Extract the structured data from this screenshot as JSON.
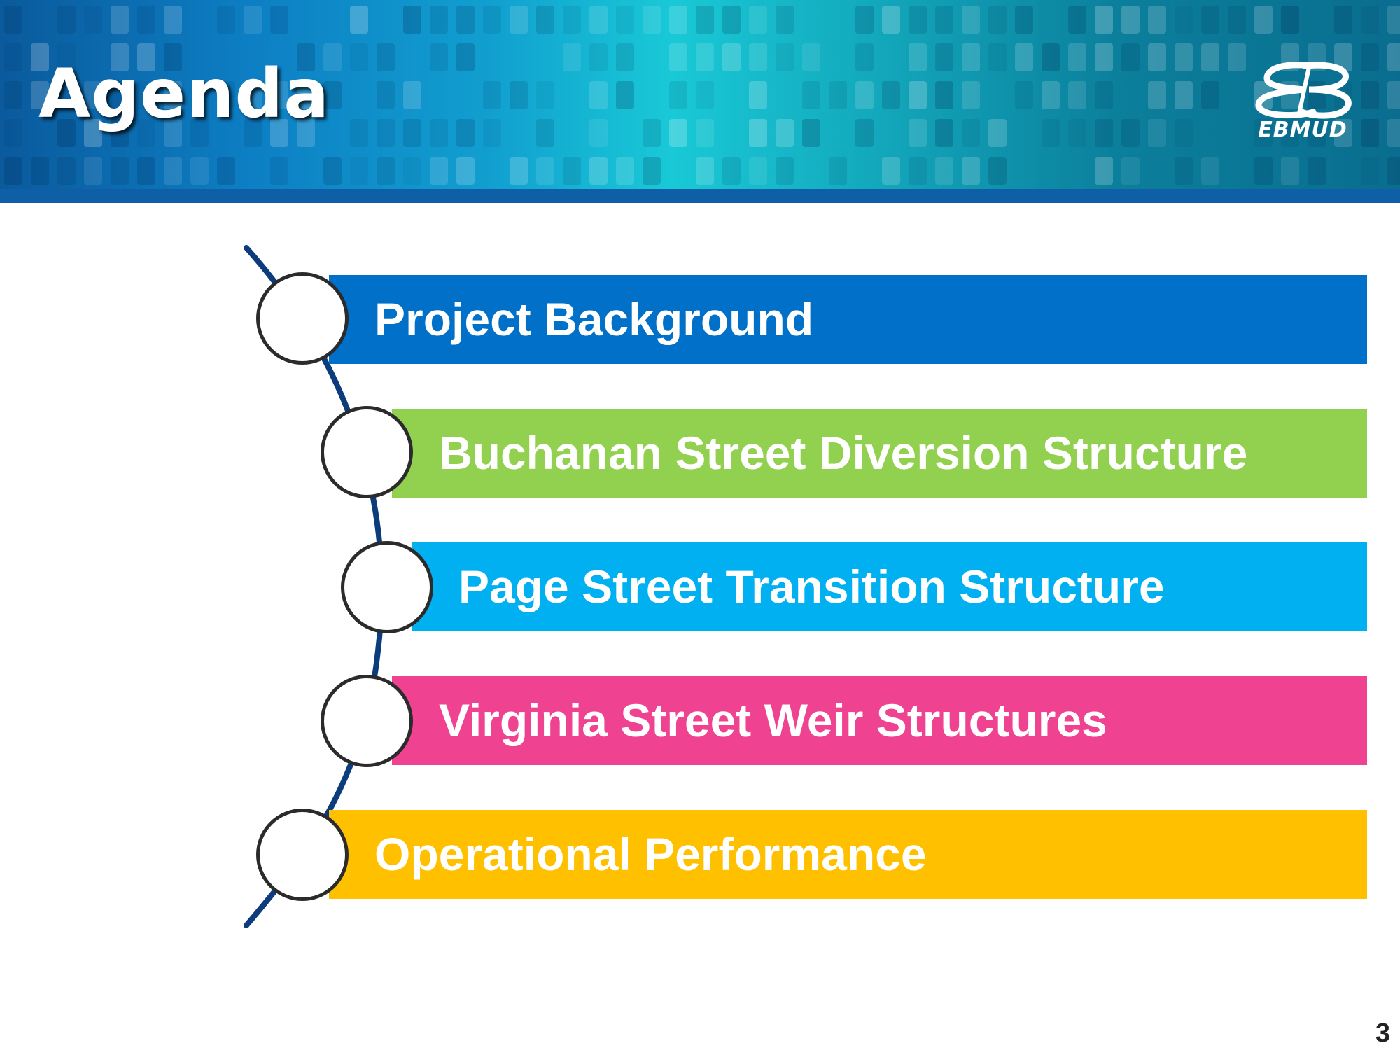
{
  "header": {
    "title": "Agenda",
    "logo_text": "EBMUD",
    "rule_color": "#0f5ea8"
  },
  "agenda": {
    "items": [
      {
        "label": "Project Background",
        "color": "#0070c8"
      },
      {
        "label": "Buchanan Street Diversion Structure",
        "color": "#92d050"
      },
      {
        "label": "Page Street Transition Structure",
        "color": "#00b0f0"
      },
      {
        "label": "Virginia Street Weir Structures",
        "color": "#ef4392"
      },
      {
        "label": "Operational Performance",
        "color": "#ffc000"
      }
    ],
    "timeline_color": "#0c3c7c"
  },
  "footer": {
    "slide_number": "3"
  }
}
